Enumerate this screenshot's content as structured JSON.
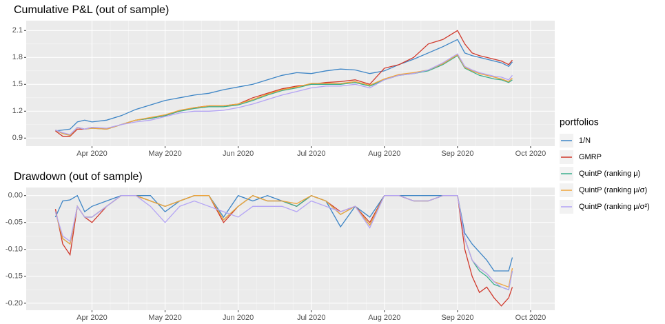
{
  "legend_title": "portfolios",
  "chart_data": [
    {
      "type": "line",
      "title": "Cumulative P&L (out of sample)",
      "x": [
        3.5,
        3.6,
        3.7,
        3.8,
        3.9,
        4.0,
        4.2,
        4.4,
        4.6,
        4.8,
        5.0,
        5.2,
        5.4,
        5.6,
        5.8,
        6.0,
        6.2,
        6.4,
        6.6,
        6.8,
        7.0,
        7.2,
        7.4,
        7.6,
        7.8,
        8.0,
        8.2,
        8.4,
        8.6,
        8.8,
        9.0,
        9.1,
        9.2,
        9.3,
        9.4,
        9.5,
        9.6,
        9.7,
        9.75
      ],
      "xlim": [
        3.1,
        10.33
      ],
      "xticks": [
        {
          "value": 4,
          "label": "Apr 2020"
        },
        {
          "value": 5,
          "label": "May 2020"
        },
        {
          "value": 6,
          "label": "Jun 2020"
        },
        {
          "value": 7,
          "label": "Jul 2020"
        },
        {
          "value": 8,
          "label": "Aug 2020"
        },
        {
          "value": 9,
          "label": "Sep 2020"
        },
        {
          "value": 10,
          "label": "Oct 2020"
        }
      ],
      "ylim": [
        0.81,
        2.21
      ],
      "yticks": [
        0.9,
        1.2,
        1.5,
        1.8,
        2.1
      ],
      "grid": true,
      "series": [
        {
          "name": "1/N",
          "color": "#3d85c6",
          "values": [
            0.98,
            0.99,
            1.0,
            1.08,
            1.1,
            1.08,
            1.1,
            1.15,
            1.22,
            1.27,
            1.32,
            1.35,
            1.38,
            1.4,
            1.44,
            1.47,
            1.5,
            1.55,
            1.6,
            1.63,
            1.62,
            1.65,
            1.67,
            1.66,
            1.62,
            1.65,
            1.72,
            1.78,
            1.85,
            1.92,
            2.0,
            1.85,
            1.82,
            1.8,
            1.78,
            1.76,
            1.74,
            1.7,
            1.75
          ]
        },
        {
          "name": "GMRP",
          "color": "#d0382b",
          "values": [
            0.98,
            0.92,
            0.92,
            1.0,
            1.0,
            1.02,
            1.0,
            1.05,
            1.1,
            1.12,
            1.15,
            1.2,
            1.24,
            1.26,
            1.26,
            1.28,
            1.35,
            1.4,
            1.45,
            1.48,
            1.5,
            1.52,
            1.53,
            1.55,
            1.5,
            1.68,
            1.72,
            1.8,
            1.95,
            2.0,
            2.1,
            1.95,
            1.85,
            1.82,
            1.8,
            1.78,
            1.76,
            1.72,
            1.77
          ]
        },
        {
          "name": "QuintP (ranking μ)",
          "color": "#3aae8c",
          "values": [
            0.99,
            0.95,
            0.93,
            1.02,
            1.0,
            1.01,
            1.0,
            1.05,
            1.1,
            1.12,
            1.15,
            1.2,
            1.23,
            1.25,
            1.25,
            1.27,
            1.32,
            1.38,
            1.43,
            1.46,
            1.5,
            1.5,
            1.5,
            1.52,
            1.48,
            1.55,
            1.6,
            1.62,
            1.65,
            1.72,
            1.82,
            1.68,
            1.64,
            1.6,
            1.58,
            1.56,
            1.55,
            1.52,
            1.55
          ]
        },
        {
          "name": "QuintP (ranking μ/σ)",
          "color": "#f0a43a",
          "values": [
            0.99,
            0.95,
            0.93,
            1.02,
            1.0,
            1.01,
            1.0,
            1.05,
            1.1,
            1.13,
            1.16,
            1.21,
            1.24,
            1.26,
            1.26,
            1.28,
            1.33,
            1.39,
            1.44,
            1.47,
            1.51,
            1.51,
            1.51,
            1.53,
            1.49,
            1.56,
            1.61,
            1.63,
            1.66,
            1.73,
            1.83,
            1.69,
            1.65,
            1.62,
            1.6,
            1.58,
            1.56,
            1.53,
            1.57
          ]
        },
        {
          "name": "QuintP (ranking μ/σ²)",
          "color": "#b3a3f5",
          "values": [
            0.99,
            0.96,
            0.94,
            1.02,
            1.0,
            1.02,
            1.01,
            1.05,
            1.08,
            1.1,
            1.14,
            1.18,
            1.2,
            1.2,
            1.21,
            1.24,
            1.28,
            1.33,
            1.38,
            1.42,
            1.46,
            1.48,
            1.48,
            1.5,
            1.46,
            1.55,
            1.6,
            1.62,
            1.66,
            1.74,
            1.84,
            1.7,
            1.66,
            1.63,
            1.61,
            1.59,
            1.58,
            1.55,
            1.6
          ]
        }
      ]
    },
    {
      "type": "line",
      "title": "Drawdown (out of sample)",
      "x": [
        3.5,
        3.6,
        3.7,
        3.8,
        3.9,
        4.0,
        4.2,
        4.4,
        4.6,
        4.8,
        5.0,
        5.2,
        5.4,
        5.6,
        5.8,
        6.0,
        6.2,
        6.4,
        6.6,
        6.8,
        7.0,
        7.2,
        7.4,
        7.6,
        7.8,
        8.0,
        8.2,
        8.4,
        8.6,
        8.8,
        9.0,
        9.1,
        9.2,
        9.3,
        9.4,
        9.5,
        9.6,
        9.7,
        9.75
      ],
      "xlim": [
        3.1,
        10.33
      ],
      "xticks": [
        {
          "value": 4,
          "label": "Apr 2020"
        },
        {
          "value": 5,
          "label": "May 2020"
        },
        {
          "value": 6,
          "label": "Jun 2020"
        },
        {
          "value": 7,
          "label": "Jul 2020"
        },
        {
          "value": 8,
          "label": "Aug 2020"
        },
        {
          "value": 9,
          "label": "Sep 2020"
        },
        {
          "value": 10,
          "label": "Oct 2020"
        }
      ],
      "ylim": [
        -0.213,
        0.015
      ],
      "yticks": [
        {
          "value": 0,
          "label": "0.00"
        },
        {
          "value": -0.05,
          "label": "-0.05"
        },
        {
          "value": -0.1,
          "label": "-0.10"
        },
        {
          "value": -0.15,
          "label": "-0.15"
        },
        {
          "value": -0.2,
          "label": "-0.20"
        }
      ],
      "grid": true,
      "series": [
        {
          "color": "#3d85c6",
          "values": [
            -0.04,
            -0.01,
            -0.008,
            0,
            -0.03,
            -0.02,
            -0.01,
            0,
            0,
            0,
            -0.03,
            -0.01,
            0,
            0,
            -0.04,
            0,
            -0.01,
            0,
            -0.01,
            -0.02,
            0,
            -0.01,
            -0.058,
            -0.02,
            -0.04,
            0,
            0,
            0,
            0,
            0,
            0,
            -0.07,
            -0.09,
            -0.105,
            -0.12,
            -0.14,
            -0.14,
            -0.14,
            -0.115
          ]
        },
        {
          "color": "#d0382b",
          "values": [
            -0.025,
            -0.09,
            -0.11,
            -0.02,
            -0.04,
            -0.05,
            -0.02,
            0,
            0,
            -0.01,
            -0.02,
            -0.01,
            0,
            0,
            -0.05,
            -0.02,
            0,
            -0.01,
            -0.01,
            -0.02,
            0,
            -0.01,
            -0.03,
            -0.02,
            -0.05,
            0,
            0,
            -0.01,
            -0.01,
            0,
            0,
            -0.1,
            -0.15,
            -0.18,
            -0.17,
            -0.19,
            -0.205,
            -0.19,
            -0.17
          ]
        },
        {
          "color": "#3aae8c",
          "values": [
            -0.03,
            -0.08,
            -0.09,
            -0.02,
            -0.04,
            -0.04,
            -0.02,
            0,
            0,
            -0.01,
            -0.02,
            -0.01,
            0,
            0,
            -0.045,
            -0.02,
            0,
            -0.01,
            -0.01,
            -0.02,
            0,
            -0.01,
            -0.035,
            -0.02,
            -0.055,
            0,
            0,
            -0.01,
            -0.01,
            0,
            0,
            -0.08,
            -0.12,
            -0.14,
            -0.15,
            -0.165,
            -0.17,
            -0.175,
            -0.14
          ]
        },
        {
          "color": "#f0a43a",
          "values": [
            -0.03,
            -0.08,
            -0.09,
            -0.02,
            -0.04,
            -0.04,
            -0.02,
            0,
            0,
            -0.01,
            -0.02,
            -0.01,
            0,
            0,
            -0.045,
            -0.02,
            0,
            -0.01,
            -0.01,
            -0.015,
            0,
            -0.01,
            -0.035,
            -0.02,
            -0.055,
            0,
            0,
            -0.01,
            -0.01,
            0,
            0,
            -0.08,
            -0.12,
            -0.135,
            -0.145,
            -0.16,
            -0.165,
            -0.17,
            -0.135
          ]
        },
        {
          "color": "#b3a3f5",
          "values": [
            -0.03,
            -0.075,
            -0.085,
            -0.02,
            -0.04,
            -0.04,
            -0.02,
            0,
            0,
            -0.02,
            -0.05,
            -0.02,
            -0.01,
            -0.02,
            -0.03,
            -0.04,
            -0.02,
            -0.02,
            -0.02,
            -0.03,
            -0.01,
            -0.02,
            -0.03,
            -0.02,
            -0.06,
            0,
            0,
            -0.01,
            -0.01,
            0,
            0,
            -0.08,
            -0.12,
            -0.135,
            -0.145,
            -0.16,
            -0.17,
            -0.175,
            -0.14
          ]
        }
      ]
    }
  ]
}
